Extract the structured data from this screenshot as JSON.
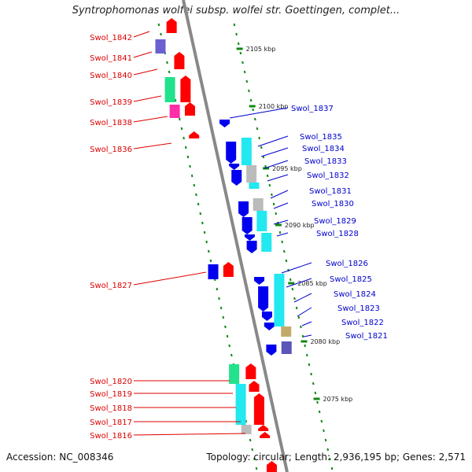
{
  "title": "Syntrophomonas wolfei subsp. wolfei str. Goettingen, complet...",
  "footer": {
    "accession": "Accession: NC_008346",
    "summary": "Topology: circular; Length: 2,936,195 bp; Genes: 2,571"
  },
  "colors": {
    "reverse_label": "#dd0000",
    "forward_label": "#0000cc",
    "backbone": "#888888",
    "tick": "#118811"
  },
  "kbp_marks": [
    "2105 kbp",
    "2100 kbp",
    "2095 kbp",
    "2090 kbp",
    "2085 kbp",
    "2080 kbp",
    "2075 kbp"
  ],
  "left_labels": [
    "Swol_1842",
    "Swol_1841",
    "Swol_1840",
    "Swol_1839",
    "Swol_1838",
    "Swol_1836",
    "Swol_1827",
    "Swol_1820",
    "Swol_1819",
    "Swol_1818",
    "Swol_1817",
    "Swol_1816"
  ],
  "right_labels": [
    "Swol_1837",
    "Swol_1835",
    "Swol_1834",
    "Swol_1833",
    "Swol_1832",
    "Swol_1831",
    "Swol_1830",
    "Swol_1829",
    "Swol_1828",
    "Swol_1826",
    "Swol_1825",
    "Swol_1824",
    "Swol_1823",
    "Swol_1822",
    "Swol_1821"
  ]
}
